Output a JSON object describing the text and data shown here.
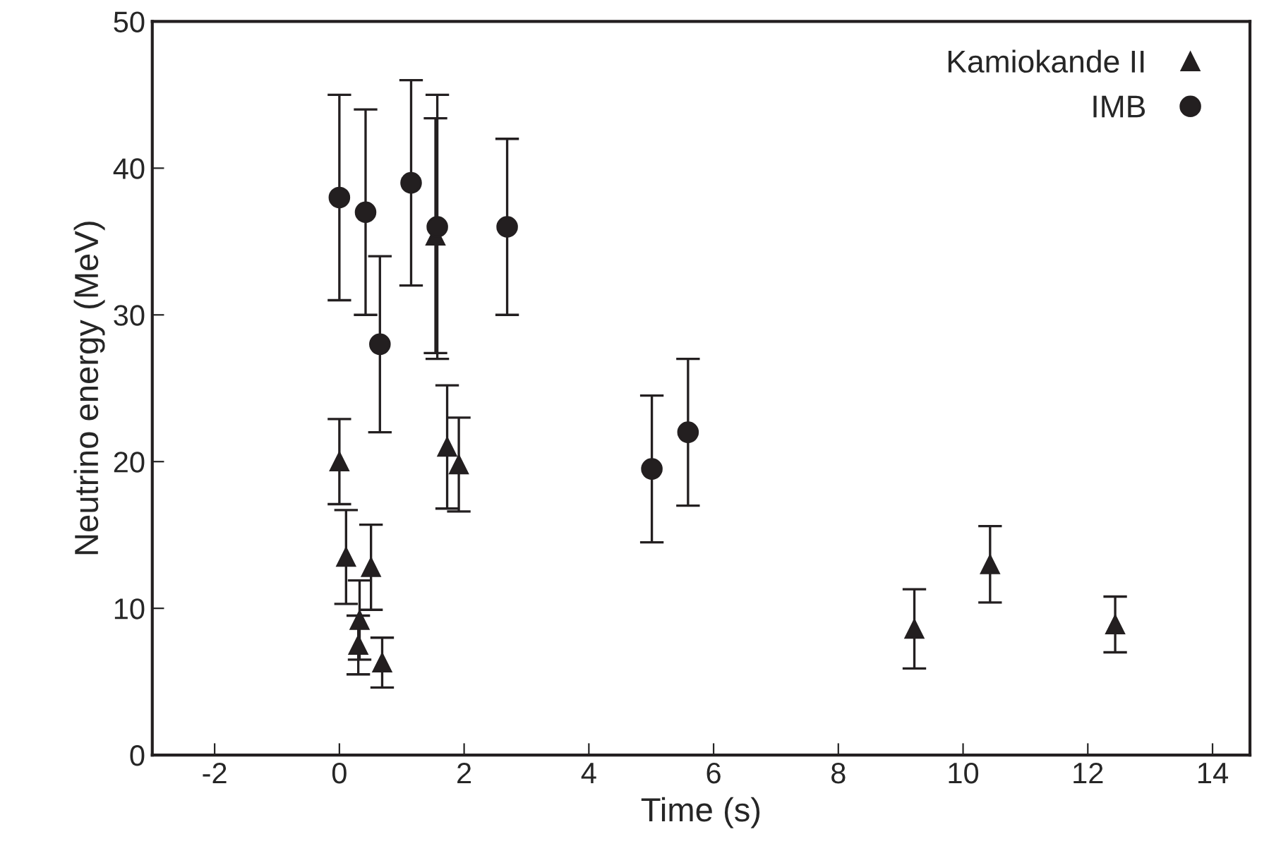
{
  "chart_data": {
    "type": "scatter",
    "xlabel": "Time (s)",
    "ylabel": "Neutrino energy (MeV)",
    "xlim": [
      -3,
      14.6
    ],
    "xticks": [
      -2,
      0,
      2,
      4,
      6,
      8,
      10,
      12,
      14
    ],
    "ylim": [
      0,
      50
    ],
    "yticks": [
      0,
      10,
      20,
      30,
      40,
      50
    ],
    "grid": false,
    "legend": "top right",
    "series": [
      {
        "name": "Kamiokande II",
        "color": "#231f20",
        "marker": "triangle",
        "x": [
          0,
          0.107,
          0.303,
          0.324,
          0.507,
          0.686,
          1.541,
          1.728,
          1.915,
          9.219,
          10.433,
          12.439
        ],
        "values": [
          20.0,
          13.5,
          7.5,
          9.2,
          12.8,
          6.3,
          35.4,
          21.0,
          19.8,
          8.6,
          13.0,
          8.9
        ],
        "errors": [
          2.9,
          3.2,
          2.0,
          2.7,
          2.9,
          1.7,
          8.0,
          4.2,
          3.2,
          2.7,
          2.6,
          1.9
        ]
      },
      {
        "name": "IMB",
        "color": "#231f20",
        "marker": "circle",
        "x": [
          0,
          0.42,
          0.65,
          1.15,
          1.57,
          2.69,
          5.01,
          5.59
        ],
        "values": [
          38,
          37,
          28,
          39,
          36,
          36,
          19.5,
          22
        ],
        "errors": [
          7,
          7,
          6,
          7,
          9,
          6,
          5,
          5
        ]
      }
    ]
  }
}
